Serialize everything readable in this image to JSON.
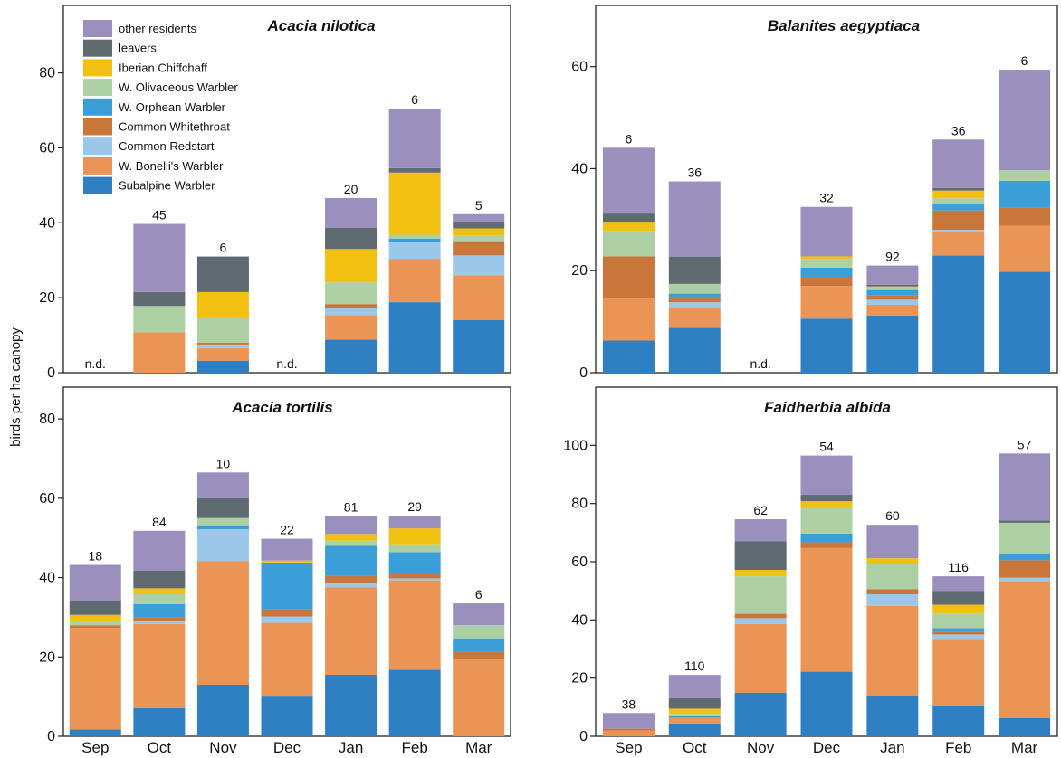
{
  "figure": {
    "ylabel": "birds per ha canopy",
    "months": [
      "Sep",
      "Oct",
      "Nov",
      "Dec",
      "Jan",
      "Feb",
      "Mar"
    ],
    "nd_label": "n.d."
  },
  "legend": [
    {
      "name": "other residents",
      "color": "#9a8fbd"
    },
    {
      "name": "leavers",
      "color": "#5f6b70"
    },
    {
      "name": "Iberian Chiffchaff",
      "color": "#f2c010"
    },
    {
      "name": "W. Olivaceous Warbler",
      "color": "#acd0a4"
    },
    {
      "name": "W. Orphean Warbler",
      "color": "#3a9fd8"
    },
    {
      "name": "Common Whitethroat",
      "color": "#c8763a"
    },
    {
      "name": "Common Redstart",
      "color": "#9cc7e8"
    },
    {
      "name": "W. Bonelli's Warbler",
      "color": "#ea9456"
    },
    {
      "name": "Subalpine Warbler",
      "color": "#2f80c2"
    }
  ],
  "chart_data": [
    {
      "type": "bar",
      "stacked": true,
      "title": "Acacia nilotica",
      "categories": [
        "Sep",
        "Oct",
        "Nov",
        "Dec",
        "Jan",
        "Feb",
        "Mar"
      ],
      "ylim": [
        0,
        98
      ],
      "yticks": [
        0,
        20,
        40,
        60,
        80
      ],
      "sample_sizes": [
        null,
        "45",
        "6",
        null,
        "20",
        "6",
        "5"
      ],
      "no_data": [
        true,
        false,
        false,
        true,
        false,
        false,
        false
      ],
      "series": [
        {
          "name": "Subalpine Warbler",
          "values": [
            0,
            0,
            3.2,
            0,
            8.8,
            18.8,
            14
          ]
        },
        {
          "name": "W. Bonelli's Warbler",
          "values": [
            0,
            10.8,
            3.3,
            0,
            6.6,
            11.6,
            12
          ]
        },
        {
          "name": "Common Redstart",
          "values": [
            0,
            0,
            1,
            0,
            1.9,
            4.4,
            5.3
          ]
        },
        {
          "name": "Common Whitethroat",
          "values": [
            0,
            0,
            0.5,
            0,
            1,
            0,
            3.8
          ]
        },
        {
          "name": "W. Orphean Warbler",
          "values": [
            0,
            0,
            0,
            0,
            0,
            1,
            0
          ]
        },
        {
          "name": "W. Olivaceous Warbler",
          "values": [
            0,
            7,
            6.5,
            0,
            5.8,
            1,
            1.5
          ]
        },
        {
          "name": "Iberian Chiffchaff",
          "values": [
            0,
            0,
            7,
            0,
            8.9,
            16.6,
            1.9
          ]
        },
        {
          "name": "leavers",
          "values": [
            0,
            3.7,
            9.5,
            0,
            5.7,
            1.2,
            1.8
          ]
        },
        {
          "name": "other residents",
          "values": [
            0,
            18.2,
            0,
            0,
            7.9,
            15.9,
            2
          ]
        }
      ]
    },
    {
      "type": "bar",
      "stacked": true,
      "title": "Balanites aegyptiaca",
      "categories": [
        "Sep",
        "Oct",
        "Nov",
        "Dec",
        "Jan",
        "Feb",
        "Mar"
      ],
      "ylim": [
        0,
        72
      ],
      "yticks": [
        0,
        20,
        40,
        60
      ],
      "sample_sizes": [
        "6",
        "36",
        null,
        "32",
        "92",
        "36",
        "6"
      ],
      "no_data": [
        false,
        false,
        true,
        false,
        false,
        false,
        false
      ],
      "series": [
        {
          "name": "Subalpine Warbler",
          "values": [
            6.3,
            8.8,
            0,
            10.6,
            11.2,
            23,
            19.8
          ]
        },
        {
          "name": "W. Bonelli's Warbler",
          "values": [
            8.2,
            3.8,
            0,
            6.4,
            2.1,
            4.6,
            9
          ]
        },
        {
          "name": "Common Redstart",
          "values": [
            0,
            1.2,
            0,
            0,
            1,
            0.4,
            0
          ]
        },
        {
          "name": "Common Whitethroat",
          "values": [
            8.3,
            1,
            0,
            1.8,
            0.9,
            3.8,
            3.5
          ]
        },
        {
          "name": "W. Orphean Warbler",
          "values": [
            0,
            0.7,
            0,
            1.8,
            1,
            1.2,
            5.3
          ]
        },
        {
          "name": "W. Olivaceous Warbler",
          "values": [
            5,
            1.9,
            0,
            1.7,
            0.5,
            1.2,
            2.1
          ]
        },
        {
          "name": "Iberian Chiffchaff",
          "values": [
            1.8,
            0,
            0,
            0.5,
            0.2,
            1.5,
            0
          ]
        },
        {
          "name": "leavers",
          "values": [
            1.6,
            5.3,
            0,
            0,
            0.3,
            0.5,
            0
          ]
        },
        {
          "name": "other residents",
          "values": [
            12.9,
            14.8,
            0,
            9.7,
            3.8,
            9.5,
            19.7
          ]
        }
      ]
    },
    {
      "type": "bar",
      "stacked": true,
      "title": "Acacia tortilis",
      "categories": [
        "Sep",
        "Oct",
        "Nov",
        "Dec",
        "Jan",
        "Feb",
        "Mar"
      ],
      "ylim": [
        0,
        88
      ],
      "yticks": [
        0,
        20,
        40,
        60,
        80
      ],
      "sample_sizes": [
        "18",
        "84",
        "10",
        "22",
        "81",
        "29",
        "6"
      ],
      "no_data": [
        false,
        false,
        false,
        false,
        false,
        false,
        false
      ],
      "series": [
        {
          "name": "Subalpine Warbler",
          "values": [
            1.7,
            7.1,
            13,
            10,
            15.5,
            16.8,
            0
          ]
        },
        {
          "name": "W. Bonelli's Warbler",
          "values": [
            25.6,
            21.2,
            31.2,
            18.6,
            22,
            22.5,
            19.4
          ]
        },
        {
          "name": "Common Redstart",
          "values": [
            0,
            0.9,
            8,
            1.6,
            1.2,
            0.5,
            0
          ]
        },
        {
          "name": "Common Whitethroat",
          "values": [
            0.7,
            0.8,
            0,
            1.8,
            1.8,
            1.3,
            1.9
          ]
        },
        {
          "name": "W. Orphean Warbler",
          "values": [
            0,
            3.3,
            1,
            11.8,
            7.5,
            5.3,
            3.4
          ]
        },
        {
          "name": "W. Olivaceous Warbler",
          "values": [
            1,
            2.5,
            1.8,
            0,
            1.3,
            2,
            3.3
          ]
        },
        {
          "name": "Iberian Chiffchaff",
          "values": [
            1.6,
            1.5,
            0,
            0.5,
            1.7,
            4,
            0
          ]
        },
        {
          "name": "leavers",
          "values": [
            3.6,
            4.5,
            5,
            0,
            0,
            0,
            0
          ]
        },
        {
          "name": "other residents",
          "values": [
            9,
            10,
            6.5,
            5.5,
            4.5,
            3.2,
            5.5
          ]
        }
      ]
    },
    {
      "type": "bar",
      "stacked": true,
      "title": "Faidherbia albida",
      "categories": [
        "Sep",
        "Oct",
        "Nov",
        "Dec",
        "Jan",
        "Feb",
        "Mar"
      ],
      "ylim": [
        0,
        120
      ],
      "yticks": [
        0,
        20,
        40,
        60,
        80,
        100
      ],
      "sample_sizes": [
        "38",
        "110",
        "62",
        "54",
        "60",
        "116",
        "57"
      ],
      "no_data": [
        false,
        false,
        false,
        false,
        false,
        false,
        false
      ],
      "series": [
        {
          "name": "Subalpine Warbler",
          "values": [
            0,
            4.4,
            15,
            22.2,
            14,
            10.3,
            6.3
          ]
        },
        {
          "name": "W. Bonelli's Warbler",
          "values": [
            2,
            2,
            23.6,
            42.5,
            30.8,
            23.2,
            47
          ]
        },
        {
          "name": "Common Redstart",
          "values": [
            0,
            0,
            2,
            0,
            4,
            1.5,
            1.2
          ]
        },
        {
          "name": "Common Whitethroat",
          "values": [
            0.6,
            0,
            1.5,
            2,
            1.8,
            1,
            6
          ]
        },
        {
          "name": "W. Orphean Warbler",
          "values": [
            0,
            0.5,
            0,
            3,
            0,
            1.2,
            2
          ]
        },
        {
          "name": "W. Olivaceous Warbler",
          "values": [
            0,
            0.8,
            12.9,
            8.8,
            8.7,
            5,
            10.9
          ]
        },
        {
          "name": "Iberian Chiffchaff",
          "values": [
            0,
            1.8,
            2.2,
            2.3,
            1.9,
            3,
            0
          ]
        },
        {
          "name": "leavers",
          "values": [
            0,
            3.6,
            9.8,
            2.2,
            0,
            4.8,
            0.8
          ]
        },
        {
          "name": "other residents",
          "values": [
            5.4,
            8,
            7.6,
            13.5,
            11.5,
            5,
            23
          ]
        }
      ]
    }
  ]
}
